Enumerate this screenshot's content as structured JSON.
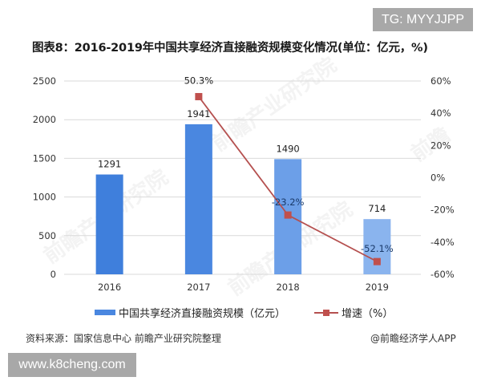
{
  "badges": {
    "tg": "TG: MYYJJPP",
    "site": "www.k8cheng.com"
  },
  "watermarks": [
    "前瞻产业研究院",
    "前瞻产业研究院",
    "前瞻产业研究院",
    "前瞻"
  ],
  "chart_data": {
    "type": "bar",
    "title": "图表8：2016-2019年中国共享经济直接融资规模变化情况(单位：亿元，%)",
    "categories": [
      "2016",
      "2017",
      "2018",
      "2019"
    ],
    "series": [
      {
        "name": "中国共享经济直接融资规模（亿元）",
        "type": "bar",
        "axis": "left",
        "values": [
          1291,
          1941,
          1490,
          714
        ],
        "labels": [
          "1291",
          "1941",
          "1490",
          "714"
        ],
        "colors": [
          "#3f7fdc",
          "#4a87e0",
          "#6c9fe8",
          "#8ab4ee"
        ]
      },
      {
        "name": "增速（%）",
        "type": "line",
        "axis": "right",
        "values": [
          null,
          50.3,
          -23.2,
          -52.1
        ],
        "labels": [
          "",
          "50.3%",
          "-23.2%",
          "-52.1%"
        ],
        "color": "#c0504d"
      }
    ],
    "xlabel": "",
    "ylabel": "",
    "ylim": [
      0,
      2500
    ],
    "y_ticks": [
      "0",
      "500",
      "1000",
      "1500",
      "2000",
      "2500"
    ],
    "y2lim": [
      -60,
      60
    ],
    "y2_ticks": [
      "-60%",
      "-40%",
      "-20%",
      "0%",
      "20%",
      "40%",
      "60%"
    ],
    "grid": true,
    "legend_position": "bottom"
  },
  "legend": {
    "bar_label": "中国共享经济直接融资规模（亿元）",
    "line_label": "增速（%）"
  },
  "footer": {
    "source": "资料来源：国家信息中心 前瞻产业研究院整理",
    "credit": "@前瞻经济学人APP"
  }
}
